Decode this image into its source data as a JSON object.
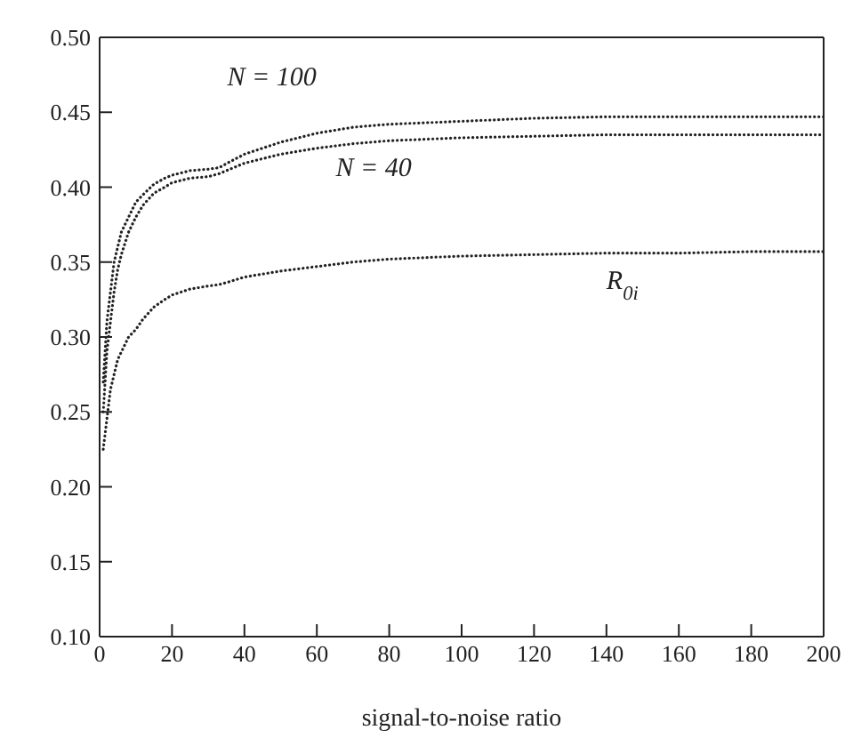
{
  "chart_data": {
    "type": "line",
    "xlabel": "signal-to-noise ratio",
    "x": [
      1,
      2,
      3,
      4,
      5,
      6,
      8,
      10,
      12,
      15,
      18,
      20,
      25,
      30,
      33,
      36,
      40,
      50,
      60,
      70,
      80,
      100,
      120,
      140,
      160,
      180,
      200
    ],
    "series": [
      {
        "name": "N = 100",
        "color": "#222222",
        "values": [
          0.27,
          0.31,
          0.33,
          0.35,
          0.36,
          0.37,
          0.38,
          0.39,
          0.395,
          0.402,
          0.406,
          0.408,
          0.411,
          0.412,
          0.413,
          0.417,
          0.422,
          0.43,
          0.436,
          0.44,
          0.442,
          0.444,
          0.446,
          0.447,
          0.447,
          0.447,
          0.447
        ]
      },
      {
        "name": "N = 40",
        "color": "#222222",
        "values": [
          0.25,
          0.29,
          0.31,
          0.33,
          0.345,
          0.355,
          0.37,
          0.38,
          0.388,
          0.396,
          0.4,
          0.403,
          0.406,
          0.407,
          0.409,
          0.412,
          0.416,
          0.422,
          0.426,
          0.429,
          0.431,
          0.433,
          0.434,
          0.435,
          0.435,
          0.435,
          0.435
        ]
      },
      {
        "name": "R$_{0i}$",
        "color": "#222222",
        "values": [
          0.225,
          0.245,
          0.265,
          0.275,
          0.285,
          0.29,
          0.3,
          0.305,
          0.312,
          0.32,
          0.325,
          0.328,
          0.332,
          0.334,
          0.335,
          0.337,
          0.34,
          0.344,
          0.347,
          0.35,
          0.352,
          0.354,
          0.355,
          0.356,
          0.356,
          0.357,
          0.357
        ]
      }
    ],
    "xlim": [
      0,
      200
    ],
    "xticks": [
      0,
      20,
      40,
      60,
      80,
      100,
      120,
      140,
      160,
      180,
      200
    ],
    "ylim": [
      0.1,
      0.5
    ],
    "yticks": [
      {
        "value": 0.1,
        "label": "0.10"
      },
      {
        "value": 0.15,
        "label": "0.15"
      },
      {
        "value": 0.2,
        "label": "0.20"
      },
      {
        "value": 0.25,
        "label": "0.25"
      },
      {
        "value": 0.3,
        "label": "0.30"
      },
      {
        "value": 0.35,
        "label": "0.35"
      },
      {
        "value": 0.4,
        "label": "0.40"
      },
      {
        "value": 0.45,
        "label": "0.45"
      },
      {
        "value": 0.5,
        "label": "0.50"
      }
    ],
    "grid": false,
    "legend": false,
    "marker": "none",
    "line_style": "dotted"
  }
}
